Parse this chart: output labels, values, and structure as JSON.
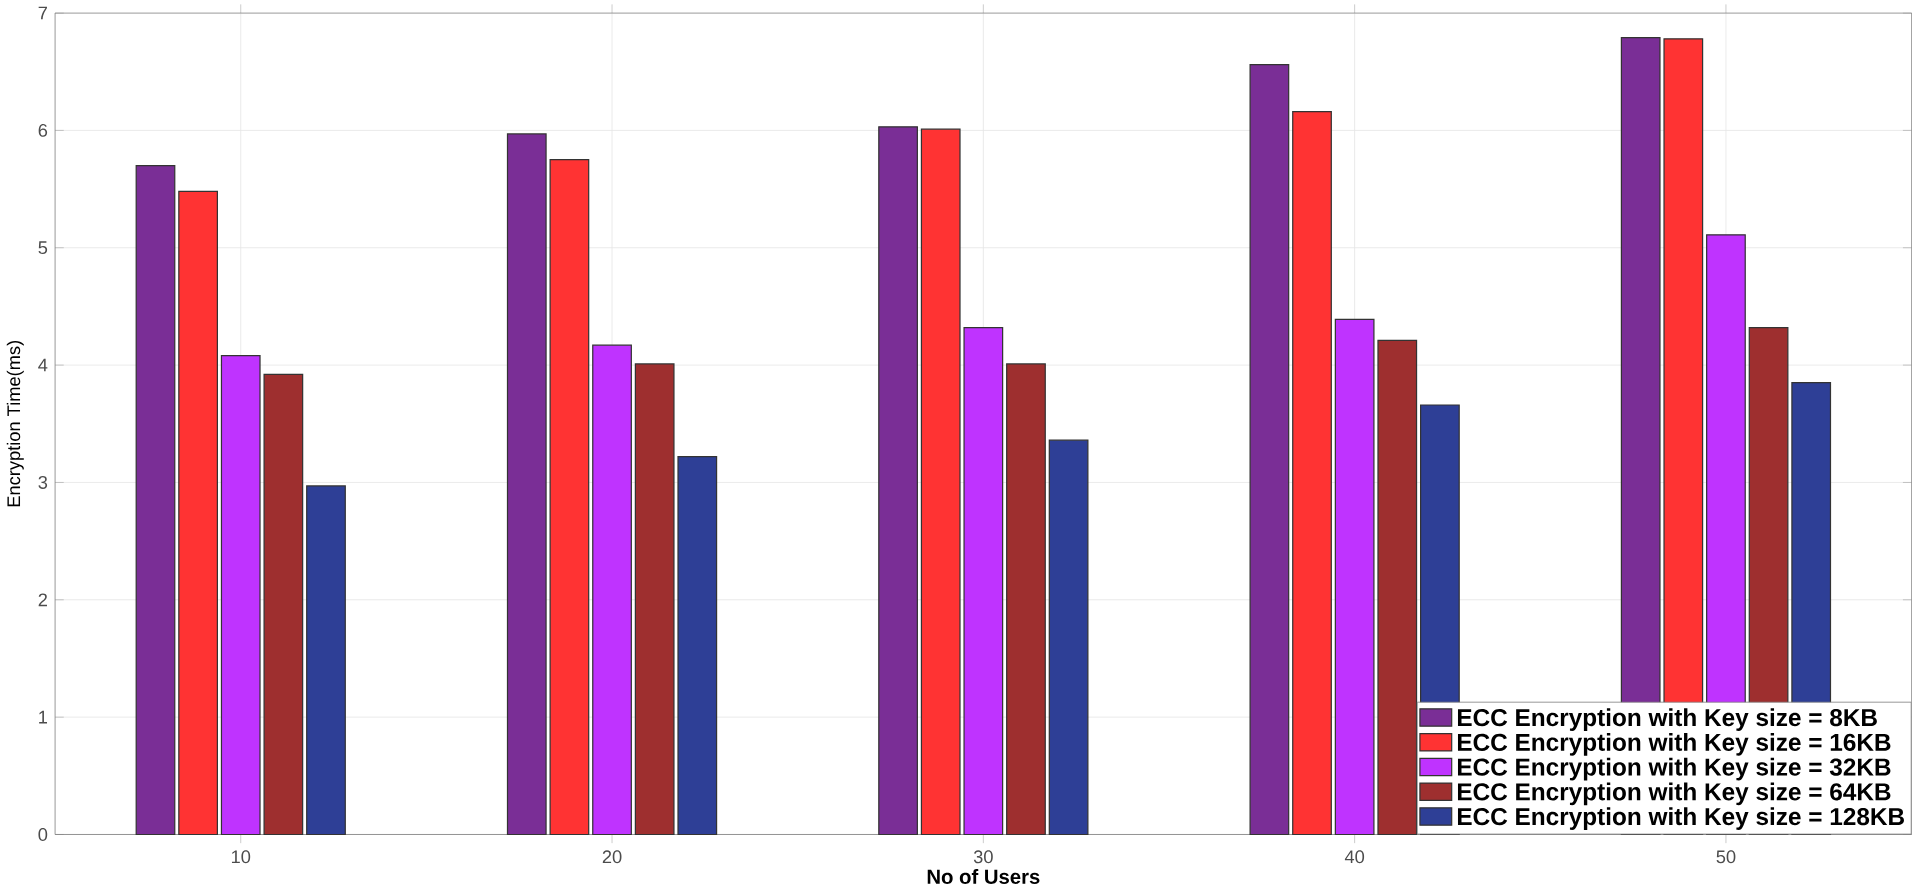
{
  "chart_data": {
    "type": "bar",
    "xlabel": "No of Users",
    "ylabel": "Encryption Time(ms)",
    "categories": [
      "10",
      "20",
      "30",
      "40",
      "50"
    ],
    "series": [
      {
        "name": "ECC Encryption with Key size = 8KB",
        "color": "#7a2e96",
        "values": [
          5.7,
          5.97,
          6.03,
          6.56,
          6.79
        ]
      },
      {
        "name": "ECC Encryption with Key size = 16KB",
        "color": "#ff3333",
        "values": [
          5.48,
          5.75,
          6.01,
          6.16,
          6.78
        ]
      },
      {
        "name": "ECC Encryption with Key size = 32KB",
        "color": "#bf33ff",
        "values": [
          4.08,
          4.17,
          4.32,
          4.39,
          5.11
        ]
      },
      {
        "name": "ECC Encryption with Key size = 64KB",
        "color": "#9e2f2f",
        "values": [
          3.92,
          4.01,
          4.01,
          4.21,
          4.32
        ]
      },
      {
        "name": "ECC Encryption with Key size = 128KB",
        "color": "#2e3f96",
        "values": [
          2.97,
          3.22,
          3.36,
          3.66,
          3.85
        ]
      }
    ],
    "ylim": [
      0,
      7
    ],
    "yticks": [
      0,
      1,
      2,
      3,
      4,
      5,
      6,
      7
    ],
    "grid": true,
    "legend": "bottom right"
  }
}
